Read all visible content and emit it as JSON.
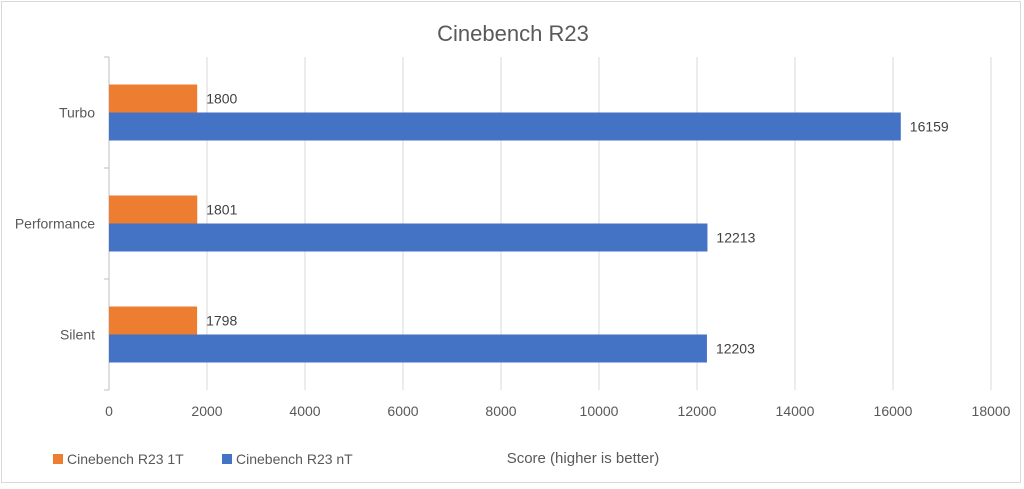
{
  "chart_data": {
    "type": "bar",
    "orientation": "horizontal",
    "title": "Cinebench R23",
    "xlabel": "Score (higher is better)",
    "ylabel": "",
    "categories": [
      "Turbo",
      "Performance",
      "Silent"
    ],
    "series": [
      {
        "name": "Cinebench R23 1T",
        "color": "#ED7D31",
        "values": [
          1800,
          1801,
          1798
        ]
      },
      {
        "name": "Cinebench R23 nT",
        "color": "#4472C4",
        "values": [
          16159,
          12213,
          12203
        ]
      }
    ],
    "xlim": [
      0,
      18000
    ],
    "xticks": [
      "0",
      "2000",
      "4000",
      "6000",
      "8000",
      "10000",
      "12000",
      "14000",
      "16000",
      "18000"
    ],
    "grid": true,
    "legend_position": "bottom-left",
    "data_labels": true
  }
}
